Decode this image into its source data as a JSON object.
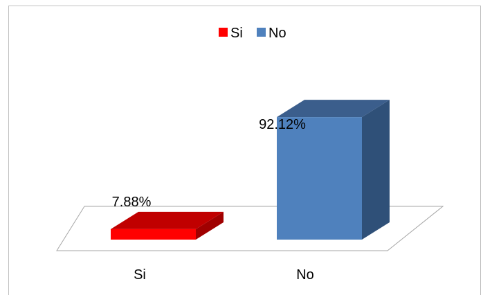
{
  "chart_data": {
    "type": "bar",
    "title": "",
    "xlabel": "",
    "ylabel": "",
    "categories": [
      "Si",
      "No"
    ],
    "values": [
      7.88,
      92.12
    ],
    "value_labels": [
      "7.88%",
      "92.12%"
    ],
    "ylim": [
      0,
      100
    ],
    "grid": false,
    "legend": {
      "placement": "top",
      "entries": [
        {
          "label": "Si",
          "color": "#ff0000"
        },
        {
          "label": "No",
          "color": "#4f81bd"
        }
      ]
    },
    "style": "3d-column",
    "colors": {
      "Si": {
        "front": "#ff0000",
        "top": "#c00000",
        "side": "#a00000"
      },
      "No": {
        "front": "#4f81bd",
        "top": "#3b5e8c",
        "side": "#2f5078"
      }
    }
  }
}
